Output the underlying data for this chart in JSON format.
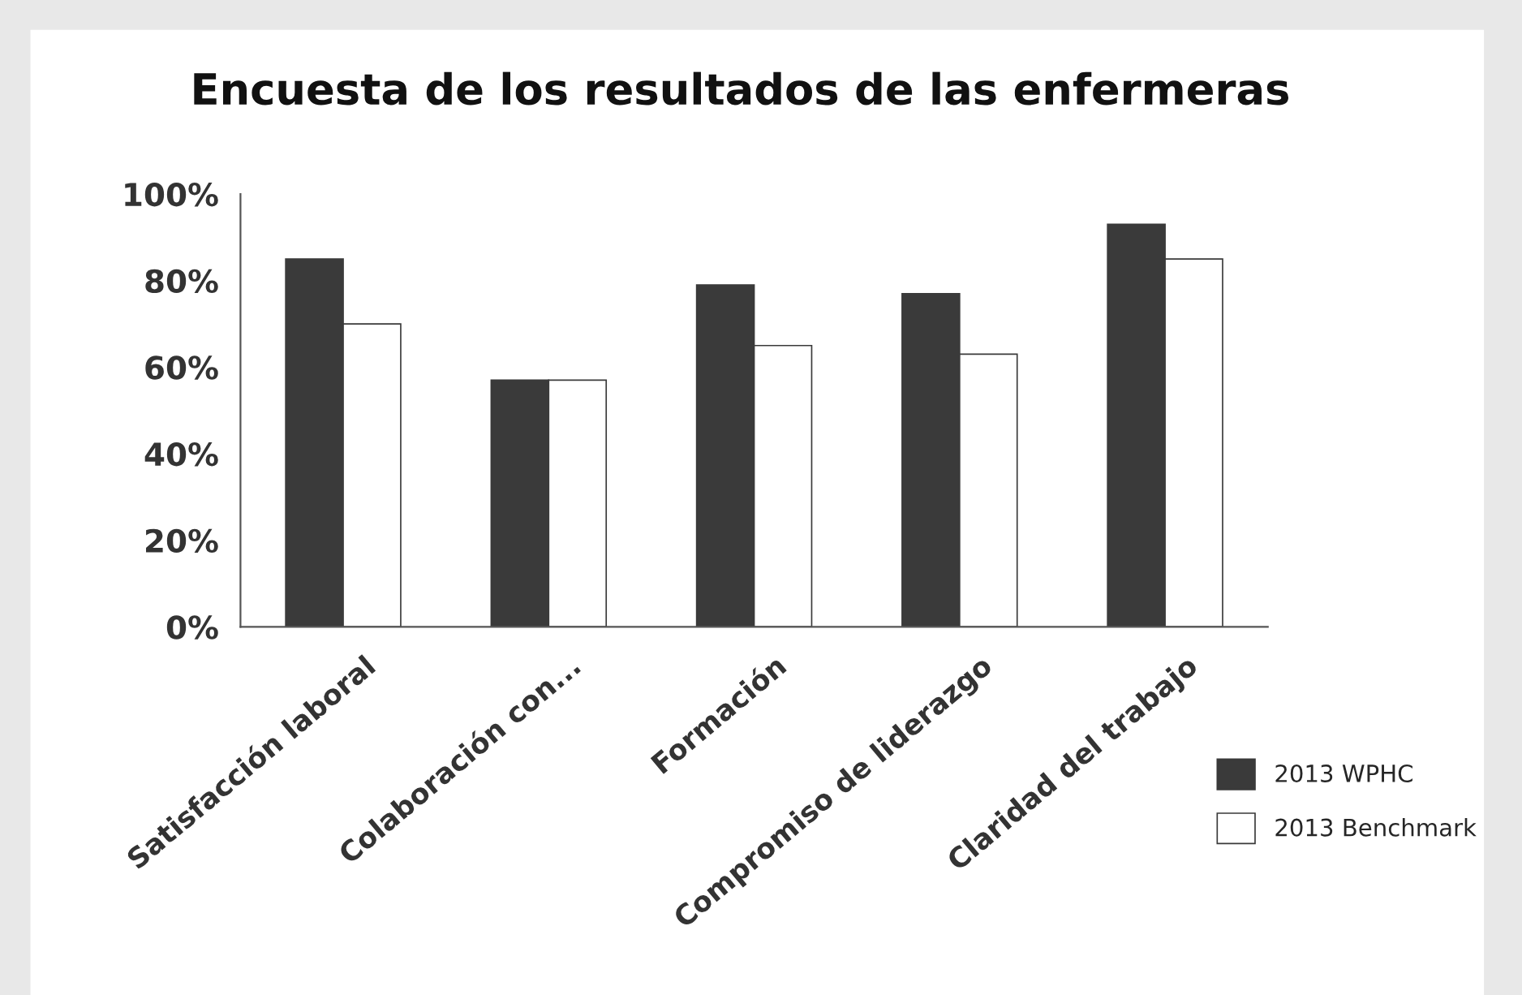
{
  "chart_data": {
    "type": "bar",
    "title": "Encuesta de los resultados de las enfermeras",
    "categories": [
      "Satisfacción laboral",
      "Colaboración con...",
      "Formación",
      "Compromiso de liderazgo",
      "Claridad del trabajo"
    ],
    "series": [
      {
        "name": "2013 WPHC",
        "color": "#3a3a3a",
        "values": [
          85,
          57,
          79,
          77,
          93
        ]
      },
      {
        "name": "2013 Benchmark",
        "color": "#ffffff",
        "values": [
          70,
          57,
          65,
          63,
          85
        ]
      }
    ],
    "ylim": [
      0,
      100
    ],
    "yticks": [
      {
        "value": 0,
        "label": "0%"
      },
      {
        "value": 20,
        "label": "20%"
      },
      {
        "value": 40,
        "label": "40%"
      },
      {
        "value": 60,
        "label": "60%"
      },
      {
        "value": 80,
        "label": "80%"
      },
      {
        "value": 100,
        "label": "100%"
      }
    ],
    "grid": false,
    "legend": "bottom right"
  }
}
